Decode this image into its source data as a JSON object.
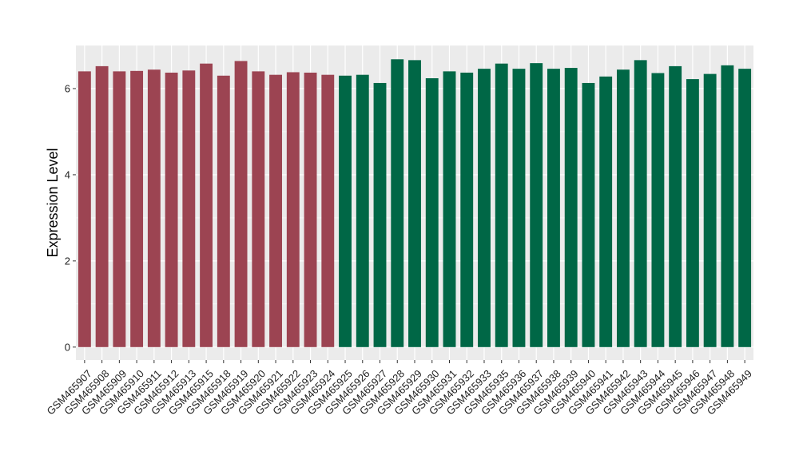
{
  "chart_data": {
    "type": "bar",
    "title": "",
    "xlabel": "",
    "ylabel": "Expression Level",
    "ylim": [
      -0.3,
      7.0
    ],
    "yticks": [
      0,
      2,
      4,
      6
    ],
    "grid": true,
    "legend": "none",
    "colors": {
      "panel_background": "#ebebeb",
      "grid_line": "#ffffff",
      "group_1": "#9c4452",
      "group_2": "#006746"
    },
    "categories": [
      "GSM465907",
      "GSM465908",
      "GSM465909",
      "GSM465910",
      "GSM465911",
      "GSM465912",
      "GSM465913",
      "GSM465915",
      "GSM465918",
      "GSM465919",
      "GSM465920",
      "GSM465921",
      "GSM465922",
      "GSM465923",
      "GSM465924",
      "GSM465925",
      "GSM465926",
      "GSM465927",
      "GSM465928",
      "GSM465929",
      "GSM465930",
      "GSM465931",
      "GSM465932",
      "GSM465933",
      "GSM465935",
      "GSM465936",
      "GSM465937",
      "GSM465938",
      "GSM465939",
      "GSM465940",
      "GSM465941",
      "GSM465942",
      "GSM465943",
      "GSM465944",
      "GSM465945",
      "GSM465946",
      "GSM465947",
      "GSM465948",
      "GSM465949"
    ],
    "values": [
      6.4,
      6.52,
      6.4,
      6.41,
      6.44,
      6.37,
      6.42,
      6.58,
      6.3,
      6.64,
      6.4,
      6.32,
      6.38,
      6.37,
      6.32,
      6.3,
      6.32,
      6.13,
      6.68,
      6.66,
      6.24,
      6.4,
      6.37,
      6.46,
      6.58,
      6.46,
      6.59,
      6.46,
      6.48,
      6.13,
      6.28,
      6.44,
      6.66,
      6.36,
      6.52,
      6.22,
      6.34,
      6.54,
      6.46
    ],
    "groups": [
      1,
      1,
      1,
      1,
      1,
      1,
      1,
      1,
      1,
      1,
      1,
      1,
      1,
      1,
      1,
      2,
      2,
      2,
      2,
      2,
      2,
      2,
      2,
      2,
      2,
      2,
      2,
      2,
      2,
      2,
      2,
      2,
      2,
      2,
      2,
      2,
      2,
      2,
      2
    ]
  }
}
